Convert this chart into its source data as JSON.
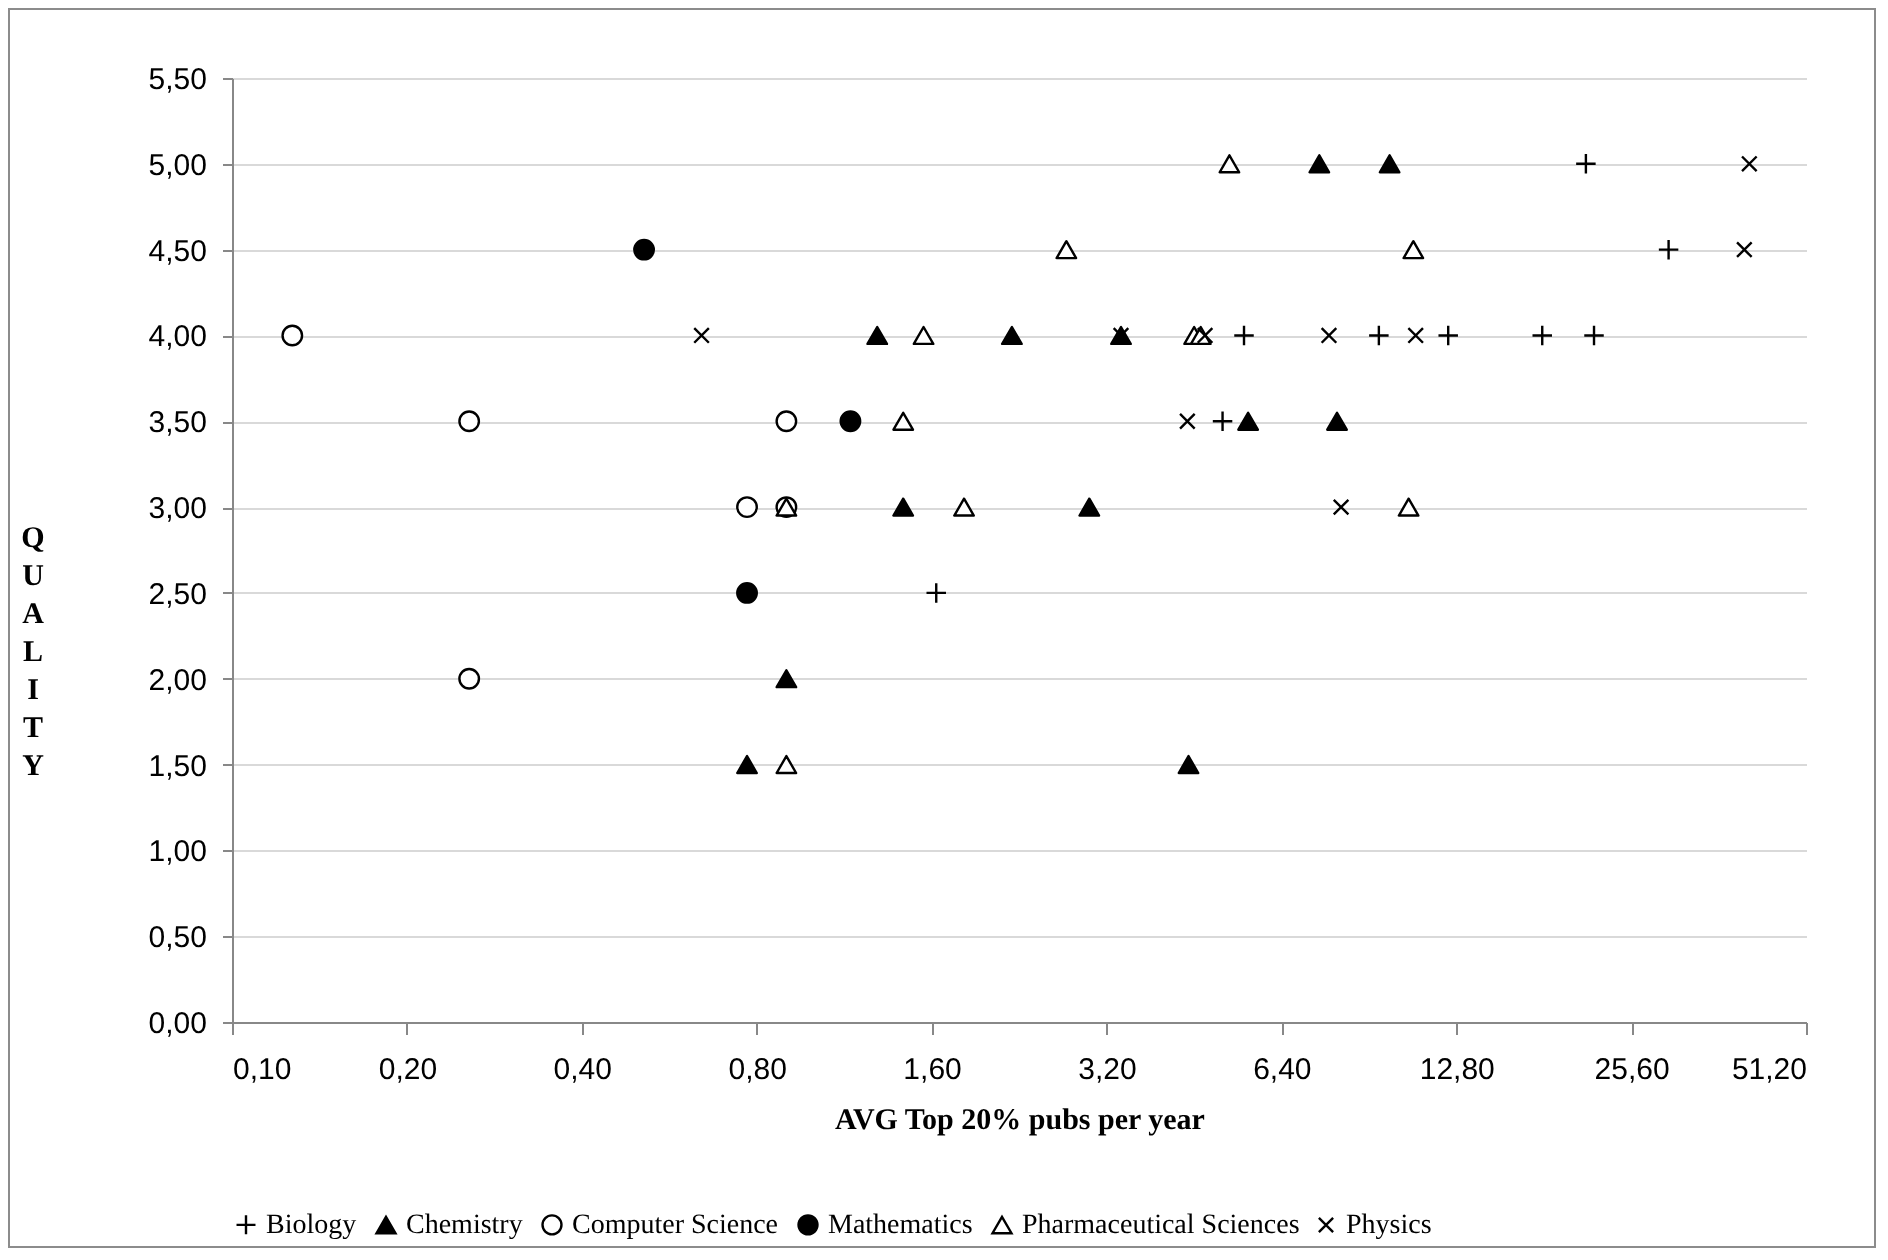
{
  "chart_data": {
    "type": "scatter",
    "xlabel": "AVG Top 20% pubs per year",
    "ylabel": "QUALITY",
    "log": "x",
    "xlim": [
      0.1,
      51.2
    ],
    "xticks": [
      {
        "value": 0.1,
        "label": "0,10"
      },
      {
        "value": 0.2,
        "label": "0,20"
      },
      {
        "value": 0.4,
        "label": "0,40"
      },
      {
        "value": 0.8,
        "label": "0,80"
      },
      {
        "value": 1.6,
        "label": "1,60"
      },
      {
        "value": 3.2,
        "label": "3,20"
      },
      {
        "value": 6.4,
        "label": "6,40"
      },
      {
        "value": 12.8,
        "label": "12,80"
      },
      {
        "value": 25.6,
        "label": "25,60"
      },
      {
        "value": 51.2,
        "label": "51,20"
      }
    ],
    "ylim": [
      0,
      5.5
    ],
    "yticks": [
      {
        "value": 0,
        "label": "0,00"
      },
      {
        "value": 0.5,
        "label": "0,50"
      },
      {
        "value": 1,
        "label": "1,00"
      },
      {
        "value": 1.5,
        "label": "1,50"
      },
      {
        "value": 2,
        "label": "2,00"
      },
      {
        "value": 2.5,
        "label": "2,50"
      },
      {
        "value": 3,
        "label": "3,00"
      },
      {
        "value": 3.5,
        "label": "3,50"
      },
      {
        "value": 4,
        "label": "4,00"
      },
      {
        "value": 4.5,
        "label": "4,50"
      },
      {
        "value": 5,
        "label": "5,00"
      },
      {
        "value": 5.5,
        "label": "5,50"
      }
    ],
    "grid": "y",
    "legend": "bottom",
    "series": [
      {
        "name": "Biology",
        "color": "#000000",
        "marker": "cross",
        "x": [
          1.63,
          21.4,
          29.7,
          5.52,
          9.42,
          12.4,
          18.0,
          22.1,
          5.07
        ],
        "values": [
          2.5,
          5,
          4.5,
          4,
          4,
          4,
          4,
          4,
          3.5
        ]
      },
      {
        "name": "Chemistry",
        "color": "#000000",
        "marker": "triangle",
        "x": [
          7.44,
          9.83,
          1.29,
          2.2,
          3.39,
          5.61,
          7.98,
          1.43,
          2.99,
          0.9,
          0.77,
          4.43
        ],
        "values": [
          5,
          5,
          4,
          4,
          4,
          3.5,
          3.5,
          3,
          3,
          2,
          1.5,
          1.5
        ]
      },
      {
        "name": "Computer Science",
        "color": "#000000",
        "marker": "circle-open",
        "x": [
          0.127,
          0.256,
          0.9,
          0.77,
          0.9,
          0.256
        ],
        "values": [
          4,
          3.5,
          3.5,
          3,
          3,
          2
        ]
      },
      {
        "name": "Mathematics",
        "color": "#000000",
        "marker": "circle",
        "x": [
          0.512,
          1.16,
          0.77
        ],
        "values": [
          4.5,
          3.5,
          2.5
        ]
      },
      {
        "name": "Pharmaceutical Sciences",
        "color": "#000000",
        "marker": "triangle-open",
        "x": [
          5.21,
          2.73,
          10.8,
          1.55,
          4.53,
          4.65,
          1.43,
          0.9,
          1.82,
          10.6,
          0.9
        ],
        "values": [
          5,
          4.5,
          4.5,
          4,
          4,
          4,
          3.5,
          3,
          3,
          3,
          1.5
        ]
      },
      {
        "name": "Physics",
        "color": "#000000",
        "marker": "x",
        "x": [
          40.9,
          40.1,
          0.643,
          3.39,
          4.73,
          7.73,
          10.9,
          4.41,
          8.11
        ],
        "values": [
          5,
          4.5,
          4,
          4,
          4,
          4,
          4,
          3.5,
          3
        ]
      }
    ]
  }
}
